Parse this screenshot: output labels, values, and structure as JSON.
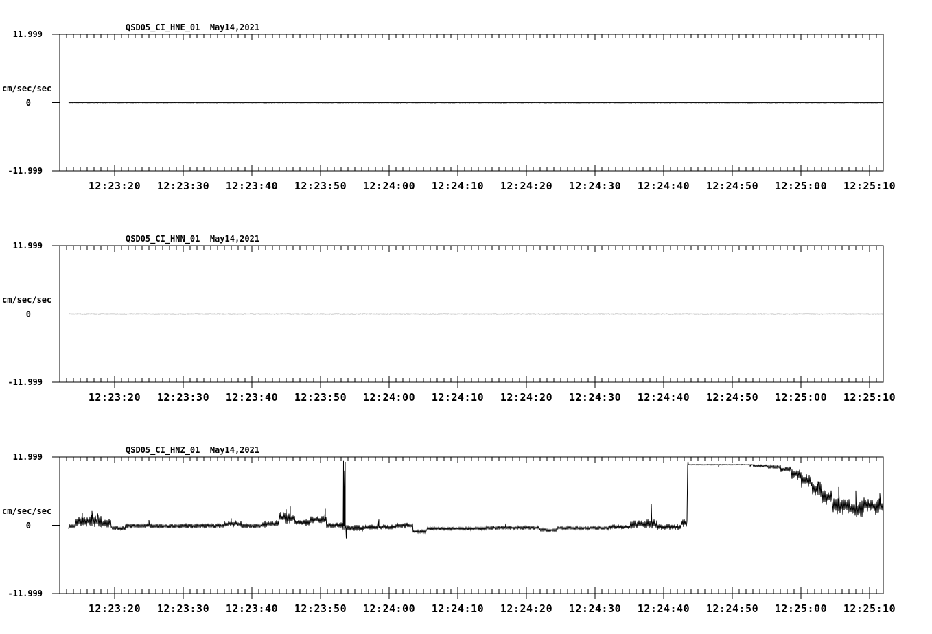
{
  "page": {
    "background": "#ffffff",
    "foreground": "#000000"
  },
  "y_axis": {
    "max_label": "11.999",
    "zero_label": "0",
    "min_label": "-11.999",
    "unit_label": "cm/sec/sec",
    "ymin": -11.999,
    "ymax": 11.999
  },
  "x_axis": {
    "tick_labels": [
      "12:23:20",
      "12:23:30",
      "12:23:40",
      "12:23:50",
      "12:24:00",
      "12:24:10",
      "12:24:20",
      "12:24:30",
      "12:24:40",
      "12:24:50",
      "12:25:00",
      "12:25:10"
    ],
    "label_interval_seconds": 10,
    "minor_tick_seconds": 1,
    "seconds_before_first_label": 8,
    "seconds_after_last_label": 2
  },
  "chart_data": [
    {
      "type": "line",
      "panel": 1,
      "title": "QSD05_CI_HNE_01  May14,2021",
      "station": "QSD05_CI_HNE_01",
      "date_label": "May14,2021",
      "ylabel": "cm/sec/sec",
      "ylim": [
        -11.999,
        11.999
      ],
      "description": "flat trace: microseismic noise at ~0 cm/sec/sec for full window",
      "envelope_format": "[t_start_s, t_end_s, center_value, half_amplitude] seconds from left axis edge (8 s before first labeled tick)",
      "envelope": [
        [
          1.3,
          120.0,
          0.0,
          0.07
        ]
      ],
      "spikes": []
    },
    {
      "type": "line",
      "panel": 2,
      "title": "QSD05_CI_HNN_01  May14,2021",
      "station": "QSD05_CI_HNN_01",
      "date_label": "May14,2021",
      "ylabel": "cm/sec/sec",
      "ylim": [
        -11.999,
        11.999
      ],
      "description": "flat trace: microseismic noise at ~0 cm/sec/sec for full window",
      "envelope_format": "[t_start_s, t_end_s, center_value, half_amplitude]",
      "envelope": [
        [
          1.3,
          120.0,
          0.0,
          0.04
        ]
      ],
      "spikes": []
    },
    {
      "type": "line",
      "panel": 3,
      "title": "QSD05_CI_HNZ_01  May14,2021",
      "station": "QSD05_CI_HNZ_01",
      "date_label": "May14,2021",
      "ylabel": "cm/sec/sec",
      "ylim": [
        -11.999,
        11.999
      ],
      "description": "noisy vertical-component trace near 0 with double spike to ~+11 at 12:23:53, step to clipped plateau ~+10.6 at 12:24:43 lasting to ~12:24:56, then noisy decay to ~+3 by trace end",
      "envelope_format": "[t_start_s, t_end_s, center_value, half_amplitude]",
      "envelope": [
        [
          1.3,
          2.3,
          -0.2,
          0.45
        ],
        [
          2.3,
          4.0,
          0.55,
          0.95
        ],
        [
          4.0,
          6.0,
          0.7,
          1.05
        ],
        [
          6.0,
          7.5,
          0.35,
          0.75
        ],
        [
          7.5,
          9.5,
          -0.55,
          0.4
        ],
        [
          9.5,
          13.5,
          -0.1,
          0.45
        ],
        [
          13.5,
          18.0,
          -0.15,
          0.4
        ],
        [
          18.0,
          24.0,
          -0.1,
          0.45
        ],
        [
          24.0,
          26.5,
          0.25,
          0.6
        ],
        [
          26.5,
          29.5,
          -0.1,
          0.45
        ],
        [
          29.5,
          32.0,
          0.25,
          0.65
        ],
        [
          32.0,
          34.3,
          1.3,
          1.1
        ],
        [
          34.3,
          36.5,
          0.45,
          0.6
        ],
        [
          36.5,
          38.9,
          1.0,
          0.65
        ],
        [
          38.9,
          41.2,
          0.05,
          0.5
        ],
        [
          41.2,
          41.9,
          -0.3,
          0.8
        ],
        [
          41.9,
          44.5,
          -0.55,
          0.6
        ],
        [
          44.5,
          49.0,
          -0.3,
          0.45
        ],
        [
          49.0,
          51.5,
          -0.05,
          0.5
        ],
        [
          51.5,
          53.5,
          -1.1,
          0.3
        ],
        [
          53.5,
          62.0,
          -0.6,
          0.3
        ],
        [
          62.0,
          70.0,
          -0.45,
          0.35
        ],
        [
          70.0,
          72.5,
          -0.85,
          0.3
        ],
        [
          72.5,
          80.0,
          -0.5,
          0.3
        ],
        [
          80.0,
          83.0,
          -0.3,
          0.45
        ],
        [
          83.0,
          85.5,
          0.1,
          0.75
        ],
        [
          85.5,
          87.0,
          0.15,
          0.9
        ],
        [
          87.0,
          90.5,
          -0.3,
          0.55
        ],
        [
          90.5,
          91.4,
          0.35,
          0.7
        ],
        [
          91.4,
          101.0,
          10.65,
          0.07
        ],
        [
          101.0,
          103.0,
          10.45,
          0.18
        ],
        [
          103.0,
          105.0,
          10.3,
          0.3
        ],
        [
          105.0,
          106.5,
          9.85,
          0.5
        ],
        [
          106.5,
          108.0,
          9.0,
          0.9
        ],
        [
          108.0,
          109.5,
          7.8,
          1.2
        ],
        [
          109.5,
          111.0,
          6.3,
          1.4
        ],
        [
          111.0,
          112.5,
          4.9,
          1.5
        ],
        [
          112.5,
          115.0,
          3.4,
          1.6
        ],
        [
          115.0,
          117.0,
          2.9,
          1.5
        ],
        [
          117.0,
          118.5,
          3.5,
          1.4
        ],
        [
          118.5,
          120.0,
          3.2,
          1.5
        ]
      ],
      "spikes": [
        [
          3.3,
          2.2
        ],
        [
          4.7,
          2.5
        ],
        [
          5.5,
          2.1
        ],
        [
          13.0,
          0.9
        ],
        [
          25.0,
          1.2
        ],
        [
          33.0,
          2.8
        ],
        [
          33.6,
          3.3
        ],
        [
          38.7,
          2.9
        ],
        [
          41.35,
          11.3
        ],
        [
          41.5,
          9.6
        ],
        [
          41.6,
          11.05
        ],
        [
          41.75,
          -2.3
        ],
        [
          46.5,
          1.0
        ],
        [
          65.0,
          0.3
        ],
        [
          86.2,
          3.8
        ],
        [
          91.55,
          11.2
        ],
        [
          96.0,
          10.42
        ],
        [
          100.6,
          10.35
        ],
        [
          104.0,
          10.6
        ],
        [
          107.5,
          7.9
        ],
        [
          110.5,
          7.7
        ],
        [
          113.5,
          6.7
        ],
        [
          116.0,
          6.1
        ],
        [
          119.5,
          5.6
        ],
        [
          120.0,
          4.3
        ]
      ]
    }
  ]
}
